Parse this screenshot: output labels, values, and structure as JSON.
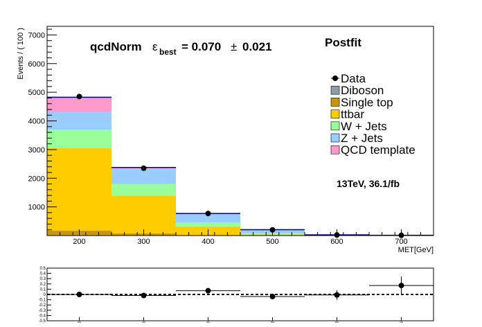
{
  "chart_data": [
    {
      "type": "bar",
      "stacked": true,
      "title": "qcdNorm",
      "fit_text": {
        "label": "qcdNorm",
        "symbol": "ε",
        "subscript": "best",
        "value": "= 0.070",
        "pm": "±",
        "error": "0.021"
      },
      "corner_label": "Postfit",
      "energy_label": "13TeV, 36.1/fb",
      "xlabel": "MET[GeV]",
      "ylabel": "Events / ( 100 )",
      "xlim": [
        150,
        750
      ],
      "ylim": [
        0,
        7300
      ],
      "x_ticks": [
        200,
        300,
        400,
        500,
        600,
        700
      ],
      "x_tick_labels": [
        "200",
        "300",
        "400",
        "500",
        "600",
        "700"
      ],
      "y_ticks": [
        1000,
        2000,
        3000,
        4000,
        5000,
        6000,
        7000
      ],
      "y_tick_labels": [
        "1000",
        "2000",
        "3000",
        "4000",
        "5000",
        "6000",
        "7000"
      ],
      "bin_edges": [
        150,
        250,
        350,
        450,
        550,
        650,
        750
      ],
      "series": [
        {
          "name": "Diboson",
          "color": "#8c9ca8",
          "values": [
            25,
            15,
            5,
            2,
            0,
            0
          ]
        },
        {
          "name": "Single top",
          "color": "#c8960c",
          "values": [
            150,
            60,
            15,
            3,
            0,
            0
          ]
        },
        {
          "name": "ttbar",
          "color": "#ffcc00",
          "values": [
            2880,
            1320,
            300,
            30,
            3,
            1
          ]
        },
        {
          "name": "W + Jets",
          "color": "#99ff99",
          "values": [
            640,
            400,
            140,
            40,
            8,
            3
          ]
        },
        {
          "name": "Z + Jets",
          "color": "#99ccff",
          "values": [
            610,
            540,
            310,
            130,
            12,
            5
          ]
        },
        {
          "name": "QCD template",
          "color": "#ff99cc",
          "values": [
            520,
            40,
            0,
            0,
            0,
            0
          ]
        }
      ],
      "data": {
        "name": "Data",
        "x": [
          200,
          300,
          400,
          500,
          600,
          700
        ],
        "y": [
          4850,
          2350,
          770,
          200,
          20,
          8
        ]
      },
      "legend_position": "right",
      "legend": [
        "Data",
        "Diboson",
        "Single top",
        "ttbar",
        "W + Jets",
        "Z + Jets",
        "QCD template"
      ]
    },
    {
      "type": "scatter",
      "title": "",
      "xlim": [
        150,
        750
      ],
      "ylim": [
        -0.5,
        0.5
      ],
      "y_ticks": [
        -0.5,
        -0.4,
        -0.3,
        -0.2,
        -0.1,
        0,
        0.1,
        0.2,
        0.3,
        0.4,
        0.5
      ],
      "y_tick_labels": [
        "-0.5",
        "-0.4",
        "-0.3",
        "-0.2",
        "-0.1",
        "0",
        "0.1",
        "0.2",
        "0.3",
        "0.4",
        "0.5"
      ],
      "x_ticks": [
        200,
        300,
        400,
        500,
        600,
        700
      ],
      "x_tick_labels": [
        "200",
        "300",
        "400",
        "500",
        "600",
        "700"
      ],
      "ratio_points": {
        "x": [
          200,
          300,
          400,
          500,
          600,
          700
        ],
        "y": [
          0.0,
          -0.02,
          0.07,
          -0.04,
          -0.01,
          0.17
        ],
        "yerr": [
          0.02,
          0.03,
          0.04,
          0.05,
          0.09,
          0.17
        ]
      },
      "reference_line": 0
    }
  ]
}
